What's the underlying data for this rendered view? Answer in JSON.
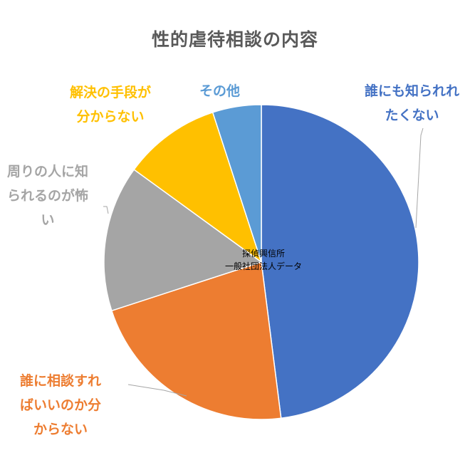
{
  "chart_data": {
    "type": "pie",
    "title": "性的虐待相談の内容",
    "categories": [
      "誰にも知られたくない",
      "誰に相談すればいいのか分からない",
      "周りの人に知られるのが怖い",
      "解決の手段が分からない",
      "その他"
    ],
    "values": [
      48,
      22,
      15,
      10,
      5
    ],
    "colors": [
      "#4472C4",
      "#ED7D31",
      "#A5A5A5",
      "#FFC000",
      "#5B9BD5"
    ],
    "labels": [
      "誰にも知られれ\nたくない",
      "誰に相談すれ\nばいいのか分\nからない",
      "周りの人に知\nられるのが怖\nい",
      "解決の手段が\n分からない",
      "その他"
    ],
    "annotation": "探偵興信所\n一般社団法人データ",
    "legend": "none"
  }
}
